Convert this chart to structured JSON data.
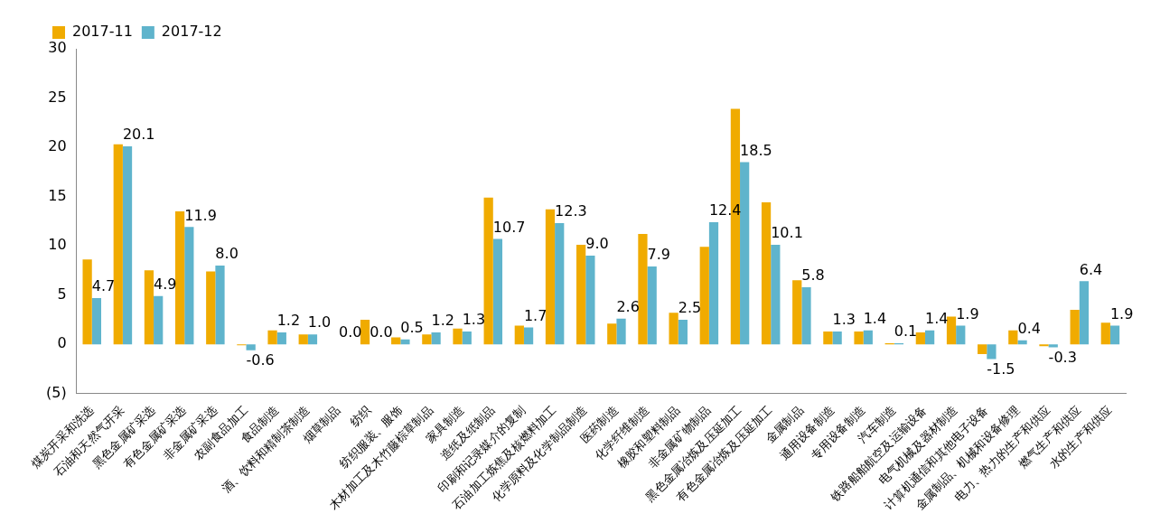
{
  "chart_data": {
    "type": "bar",
    "categories": [
      "煤炭开采和洗选",
      "石油和天然气开采",
      "黑色金属矿采选",
      "有色金属矿采选",
      "非金属矿采选",
      "农副食品加工",
      "食品制造",
      "酒、饮料和精制茶制造",
      "烟草制品",
      "纺织",
      "纺织服装、服饰",
      "木材加工及木竹藤棕草制品",
      "家具制造",
      "造纸及纸制品",
      "印刷和记录媒介的复制",
      "石油加工炼焦及核燃料加工",
      "化学原料及化学制品制造",
      "医药制造",
      "化学纤维制造",
      "橡胶和塑料制品",
      "非金属矿物制品",
      "黑色金属冶炼及压延加工",
      "有色金属冶炼及压延加工",
      "金属制品",
      "通用设备制造",
      "专用设备制造",
      "汽车制造",
      "铁路船舶航空及运输设备",
      "电气机械及器材制造",
      "计算机通信和其他电子设备",
      "金属制品、机械和设备修理",
      "电力、热力的生产和供应",
      "燃气生产和供应",
      "水的生产和供应"
    ],
    "series": [
      {
        "name": "2017-11",
        "color": "#f0ab00",
        "values": [
          8.6,
          20.3,
          7.5,
          13.5,
          7.4,
          -0.1,
          1.4,
          1.0,
          0.0,
          2.5,
          0.7,
          1.0,
          1.6,
          14.9,
          1.9,
          13.7,
          10.1,
          2.1,
          11.2,
          3.2,
          9.9,
          23.9,
          14.4,
          6.5,
          1.3,
          1.3,
          0.1,
          1.2,
          2.8,
          -1.0,
          1.4,
          -0.2,
          3.5,
          2.2
        ]
      },
      {
        "name": "2017-12",
        "color": "#5fb4cc",
        "values": [
          4.7,
          20.1,
          4.9,
          11.9,
          8.0,
          -0.6,
          1.2,
          1.0,
          0.0,
          0.0,
          0.5,
          1.2,
          1.3,
          10.7,
          1.7,
          12.3,
          9.0,
          2.6,
          7.9,
          2.5,
          12.4,
          18.5,
          10.1,
          5.8,
          1.3,
          1.4,
          0.1,
          1.4,
          1.9,
          -1.5,
          0.4,
          -0.3,
          6.4,
          1.9
        ],
        "value_labels": [
          "4.7",
          "20.1",
          "4.9",
          "11.9",
          "8.0",
          "-0.6",
          "1.2",
          "1.0",
          "0.0",
          "0.0",
          "0.5",
          "1.2",
          "1.3",
          "10.7",
          "1.7",
          "12.3",
          "9.0",
          "2.6",
          "7.9",
          "2.5",
          "12.4",
          "18.5",
          "10.1",
          "5.8",
          "1.3",
          "1.4",
          "0.1",
          "1.4",
          "1.9",
          "-1.5",
          "0.4",
          "-0.3",
          "6.4",
          "1.9"
        ]
      }
    ],
    "ylim": [
      -5,
      30
    ],
    "yticks": [
      {
        "value": -5,
        "label": "(5)"
      },
      0,
      5,
      10,
      15,
      20,
      25,
      30
    ],
    "grid": false,
    "legend": "top left"
  }
}
